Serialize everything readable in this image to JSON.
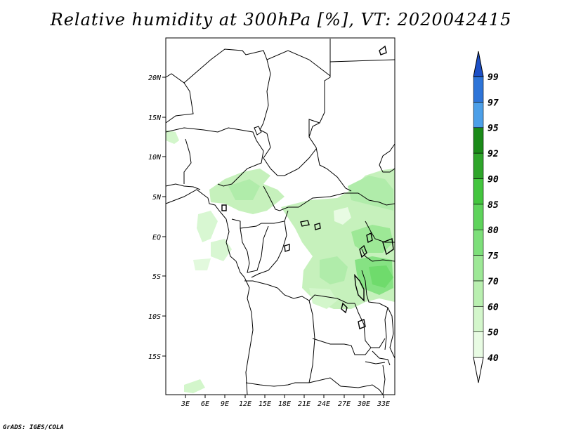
{
  "title": "Relative humidity at 300hPa [%], VT: 2020042415",
  "credit": "GrADS: IGES/COLA",
  "lat_labels": [
    "20N",
    "15N",
    "10N",
    "5N",
    "EQ",
    "5S",
    "10S",
    "15S"
  ],
  "lon_labels": [
    "3E",
    "6E",
    "9E",
    "12E",
    "15E",
    "18E",
    "21E",
    "24E",
    "27E",
    "30E",
    "33E"
  ],
  "colorbar": {
    "levels": [
      "40",
      "50",
      "60",
      "70",
      "75",
      "80",
      "85",
      "90",
      "92",
      "95",
      "97",
      "99"
    ],
    "colors": [
      "#e8fbe3",
      "#d3f6cb",
      "#b9efb0",
      "#9de896",
      "#7ddf7a",
      "#5ed35b",
      "#43c53e",
      "#2ea52a",
      "#1a8a18",
      "#4c9fe8",
      "#2d74d8",
      "#1c4fc6"
    ],
    "top_color": "#1c4fc6",
    "bottom_color": "#ffffff"
  },
  "colors": {
    "land_border": "#000000",
    "background": "#ffffff"
  }
}
